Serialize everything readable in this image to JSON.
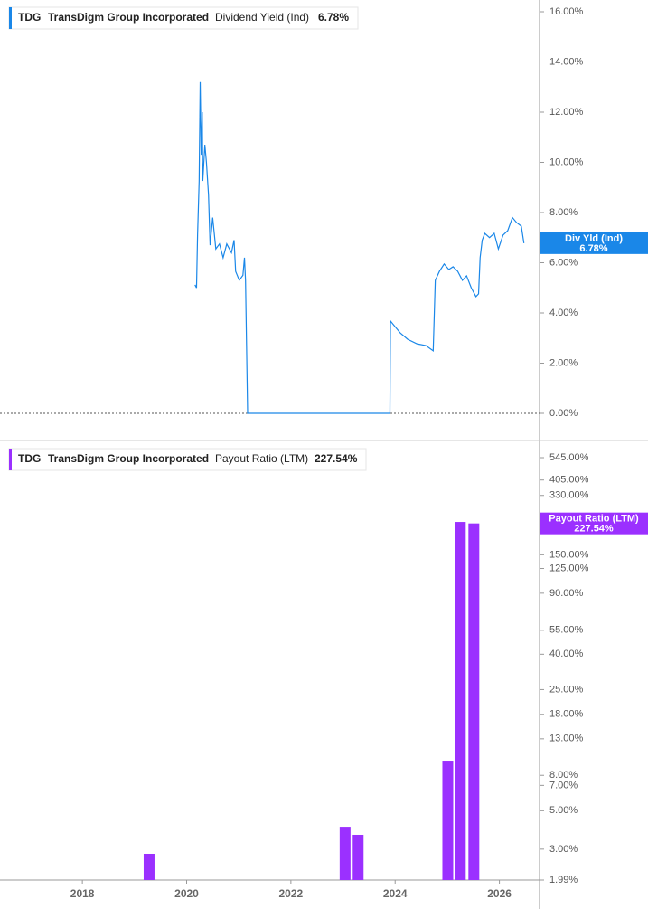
{
  "chart_data": [
    {
      "type": "line",
      "ticker": "TDG",
      "company": "TransDigm Group Incorporated",
      "series_name": "Dividend Yield (Ind)",
      "current_value": 6.78,
      "current_label": "6.78%",
      "flag_name": "Div Yld (Ind)",
      "color": "#1a87e8",
      "zero_line": true,
      "x": [
        2020.16,
        2020.19,
        2020.21,
        2020.24,
        2020.26,
        2020.28,
        2020.3,
        2020.31,
        2020.35,
        2020.38,
        2020.42,
        2020.45,
        2020.5,
        2020.56,
        2020.63,
        2020.7,
        2020.77,
        2020.86,
        2020.91,
        2020.94,
        2021.01,
        2021.08,
        2021.11,
        2021.13,
        2021.17,
        2023.9,
        2023.91,
        2023.98,
        2024.1,
        2024.24,
        2024.42,
        2024.59,
        2024.73,
        2024.77,
        2024.85,
        2024.94,
        2025.03,
        2025.11,
        2025.2,
        2025.29,
        2025.37,
        2025.46,
        2025.55,
        2025.6,
        2025.63,
        2025.67,
        2025.72,
        2025.81,
        2025.9,
        2025.98,
        2026.07,
        2026.16,
        2026.25,
        2026.33,
        2026.42,
        2026.47
      ],
      "values": [
        5.12,
        5.0,
        7.1,
        9.26,
        13.2,
        10.3,
        12.0,
        9.26,
        10.7,
        10.0,
        8.7,
        6.7,
        7.8,
        6.55,
        6.75,
        6.2,
        6.75,
        6.4,
        6.9,
        5.66,
        5.3,
        5.5,
        6.2,
        5.3,
        0,
        0,
        3.68,
        3.5,
        3.2,
        2.95,
        2.77,
        2.7,
        2.49,
        5.3,
        5.66,
        5.95,
        5.73,
        5.84,
        5.66,
        5.3,
        5.48,
        5.0,
        4.65,
        4.76,
        6.2,
        6.9,
        7.17,
        7.0,
        7.17,
        6.55,
        7.1,
        7.28,
        7.8,
        7.6,
        7.46,
        6.78
      ],
      "xlim": [
        2016.42,
        2026.77
      ],
      "ylim": [
        0,
        16
      ],
      "yticks": [
        {
          "value": 16,
          "label": "16.00%"
        },
        {
          "value": 14,
          "label": "14.00%"
        },
        {
          "value": 12,
          "label": "12.00%"
        },
        {
          "value": 10,
          "label": "10.00%"
        },
        {
          "value": 8,
          "label": "8.00%"
        },
        {
          "value": 6,
          "label": "6.00%"
        },
        {
          "value": 4,
          "label": "4.00%"
        },
        {
          "value": 2,
          "label": "2.00%"
        },
        {
          "value": 0,
          "label": "0.00%"
        }
      ]
    },
    {
      "type": "bar",
      "ticker": "TDG",
      "company": "TransDigm Group Incorporated",
      "series_name": "Payout Ratio (LTM)",
      "current_value": 227.54,
      "current_label": "227.54%",
      "flag_name": "Payout Ratio (LTM)",
      "color": "#9b30ff",
      "log_y": true,
      "x": [
        2019.28,
        2023.04,
        2023.29,
        2025.01,
        2025.25,
        2025.51
      ],
      "values": [
        2.82,
        4.04,
        3.63,
        9.72,
        232,
        227.54
      ],
      "xlim": [
        2016.42,
        2026.77
      ],
      "ylim": [
        1.99,
        545
      ],
      "xticks": [
        2018,
        2020,
        2022,
        2024,
        2026
      ],
      "yticks": [
        {
          "value": 545,
          "label": "545.00%"
        },
        {
          "value": 405,
          "label": "405.00%"
        },
        {
          "value": 330,
          "label": "330.00%"
        },
        {
          "value": 150,
          "label": "150.00%"
        },
        {
          "value": 125,
          "label": "125.00%"
        },
        {
          "value": 90,
          "label": "90.00%"
        },
        {
          "value": 55,
          "label": "55.00%"
        },
        {
          "value": 40,
          "label": "40.00%"
        },
        {
          "value": 25,
          "label": "25.00%"
        },
        {
          "value": 18,
          "label": "18.00%"
        },
        {
          "value": 13,
          "label": "13.00%"
        },
        {
          "value": 8,
          "label": "8.00%"
        },
        {
          "value": 7,
          "label": "7.00%"
        },
        {
          "value": 5,
          "label": "5.00%"
        },
        {
          "value": 3,
          "label": "3.00%"
        },
        {
          "value": 1.99,
          "label": "1.99%"
        }
      ]
    }
  ]
}
